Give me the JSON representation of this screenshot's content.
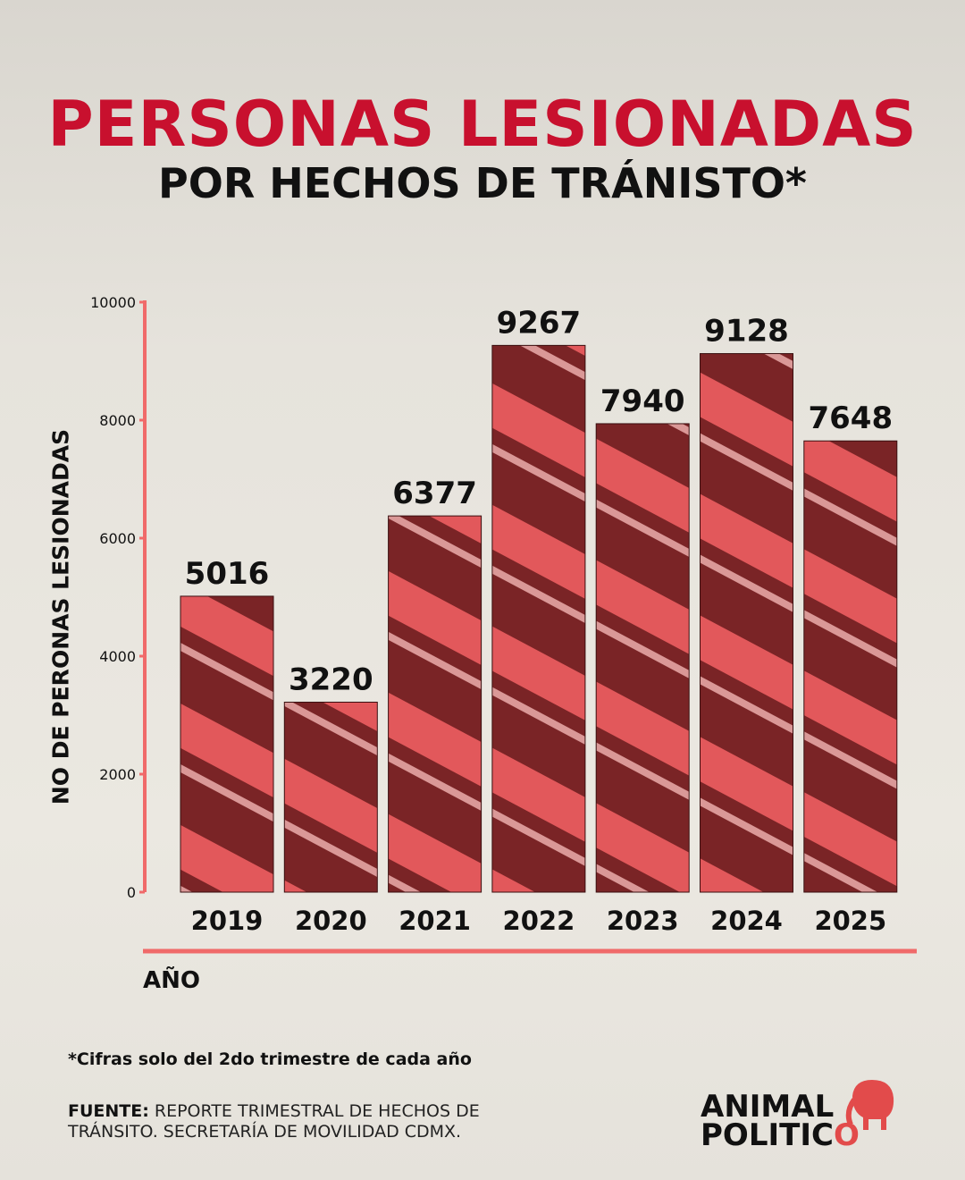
{
  "title": "PERSONAS LESIONADAS",
  "subtitle": "POR HECHOS DE TRÁNISTO*",
  "note": "*Cifras solo del 2do trimestre de cada año",
  "source": {
    "label": "FUENTE:",
    "line1": "REPORTE TRIMESTRAL DE HECHOS DE",
    "line2": "TRÁNSITO. SECRETARÍA DE MOVILIDAD CDMX."
  },
  "logo": {
    "line1": "ANIMAL",
    "line2": "POLITIC",
    "line2_o": "O"
  },
  "colors": {
    "title": "#c8102e",
    "axis": "#f06a6a",
    "bar_dark": "#5a1a1c",
    "bar_light": "#e8585a"
  },
  "chart_data": {
    "type": "bar",
    "categories": [
      "2019",
      "2020",
      "2021",
      "2022",
      "2023",
      "2024",
      "2025"
    ],
    "values": [
      5016,
      3220,
      6377,
      9267,
      7940,
      9128,
      7648
    ],
    "data_labels": [
      "5016",
      "3220",
      "6377",
      "9267",
      "7940",
      "9128",
      "7648"
    ],
    "title": "PERSONAS LESIONADAS",
    "subtitle": "POR HECHOS DE TRÁNISTO*",
    "xlabel": "AÑO",
    "ylabel": "NO DE PERONAS LESIONADAS",
    "ylim": [
      0,
      10000
    ],
    "yticks": [
      "0",
      "2000",
      "4000",
      "6000",
      "8000",
      "10000"
    ],
    "grid": false,
    "legend": "none"
  }
}
